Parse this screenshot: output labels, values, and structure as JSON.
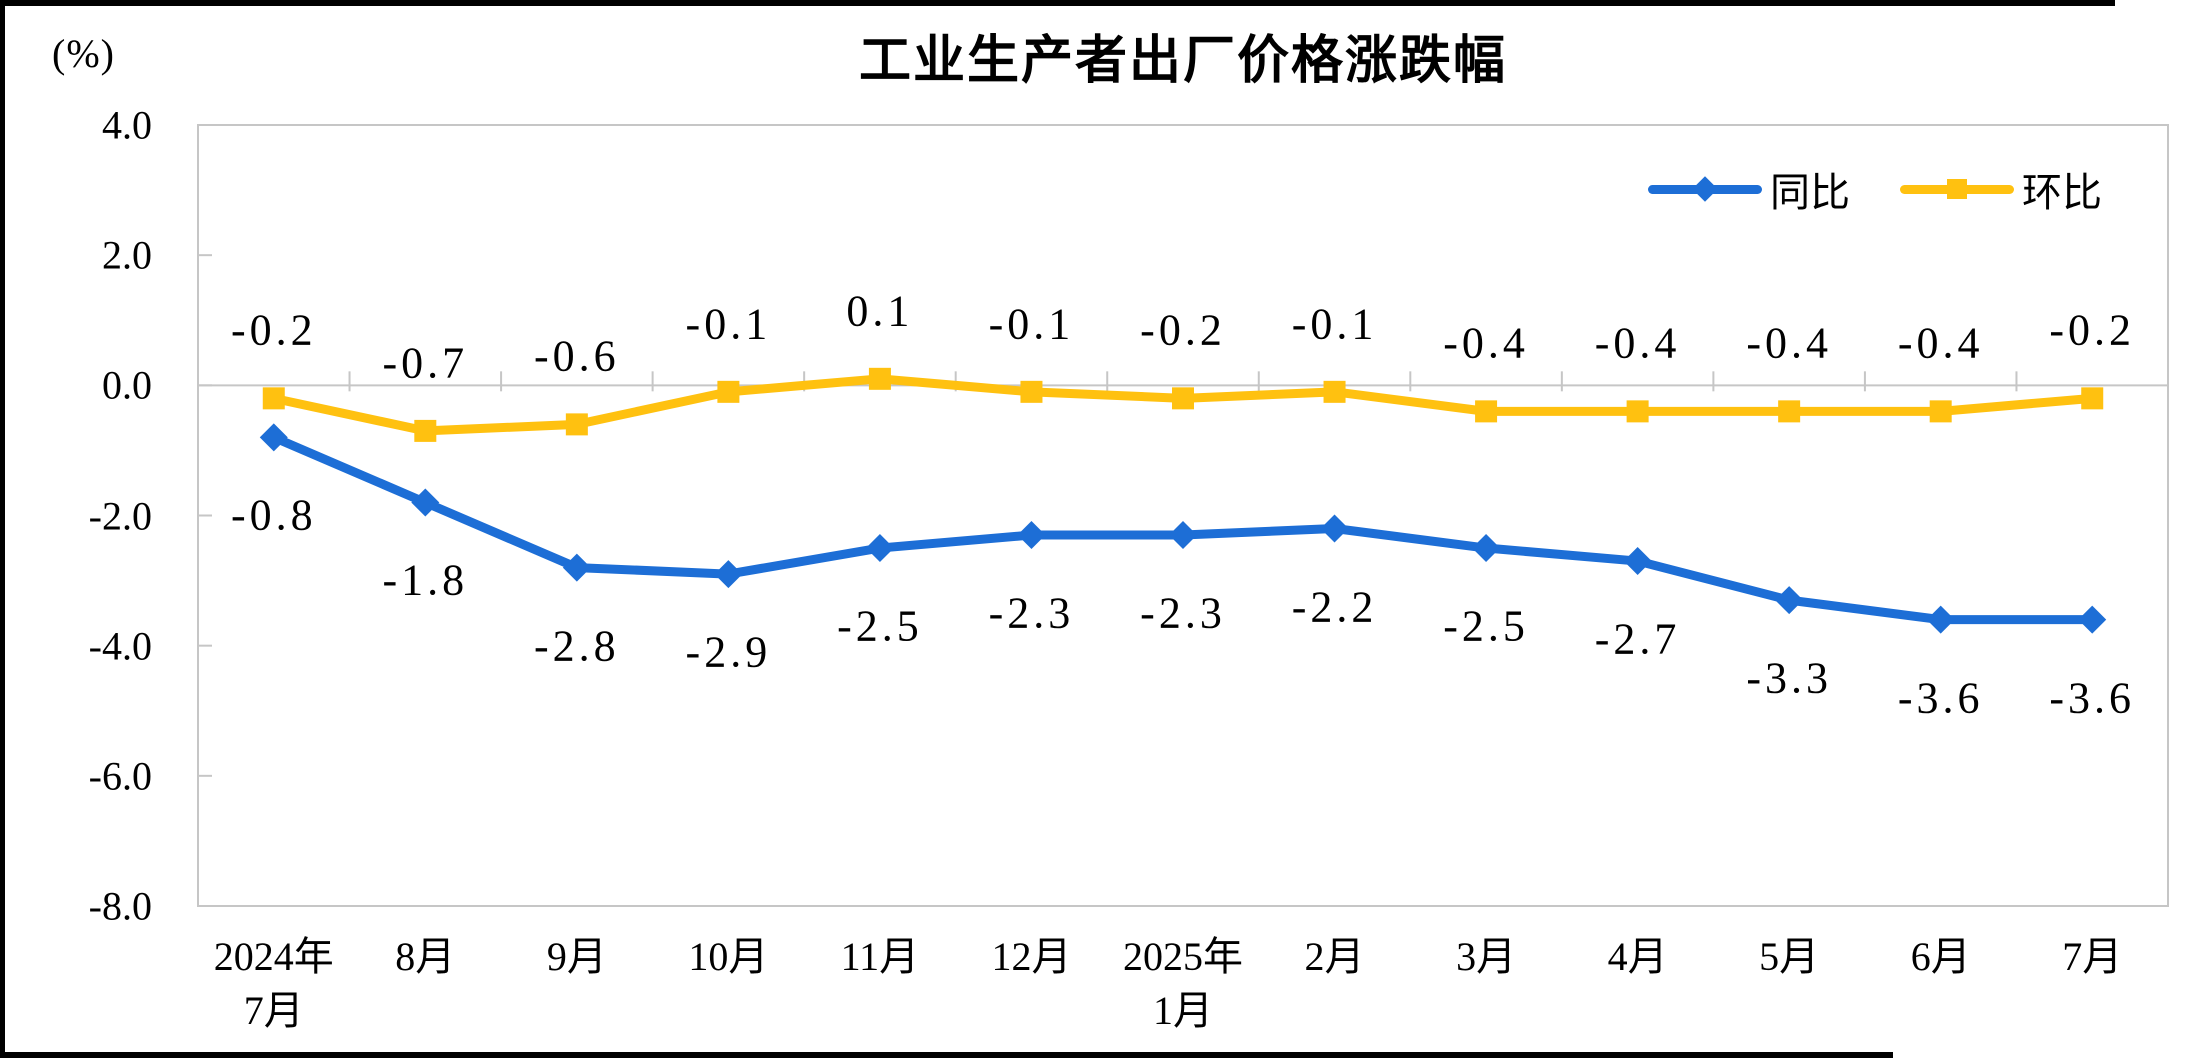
{
  "chart_data": {
    "type": "line",
    "title": "工业生产者出厂价格涨跌幅",
    "ylabel": "(%)",
    "xlabel": "",
    "ylim": [
      -8.0,
      4.0
    ],
    "ytick_step": 2.0,
    "grid": false,
    "legend_position": "top-right",
    "axis_color": "#c6c6c6",
    "label_color": "#000000",
    "categories": [
      "2024年\n7月",
      "8月",
      "9月",
      "10月",
      "11月",
      "12月",
      "2025年\n1月",
      "2月",
      "3月",
      "4月",
      "5月",
      "6月",
      "7月"
    ],
    "series": [
      {
        "name": "同比",
        "color": "#1d6ed6",
        "marker": "diamond",
        "label_side": "below",
        "values": [
          -0.8,
          -1.8,
          -2.8,
          -2.9,
          -2.5,
          -2.3,
          -2.3,
          -2.2,
          -2.5,
          -2.7,
          -3.3,
          -3.6,
          -3.6
        ]
      },
      {
        "name": "环比",
        "color": "#ffc110",
        "marker": "square",
        "label_side": "above",
        "values": [
          -0.2,
          -0.7,
          -0.6,
          -0.1,
          0.1,
          -0.1,
          -0.2,
          -0.1,
          -0.4,
          -0.4,
          -0.4,
          -0.4,
          -0.2
        ]
      }
    ]
  }
}
